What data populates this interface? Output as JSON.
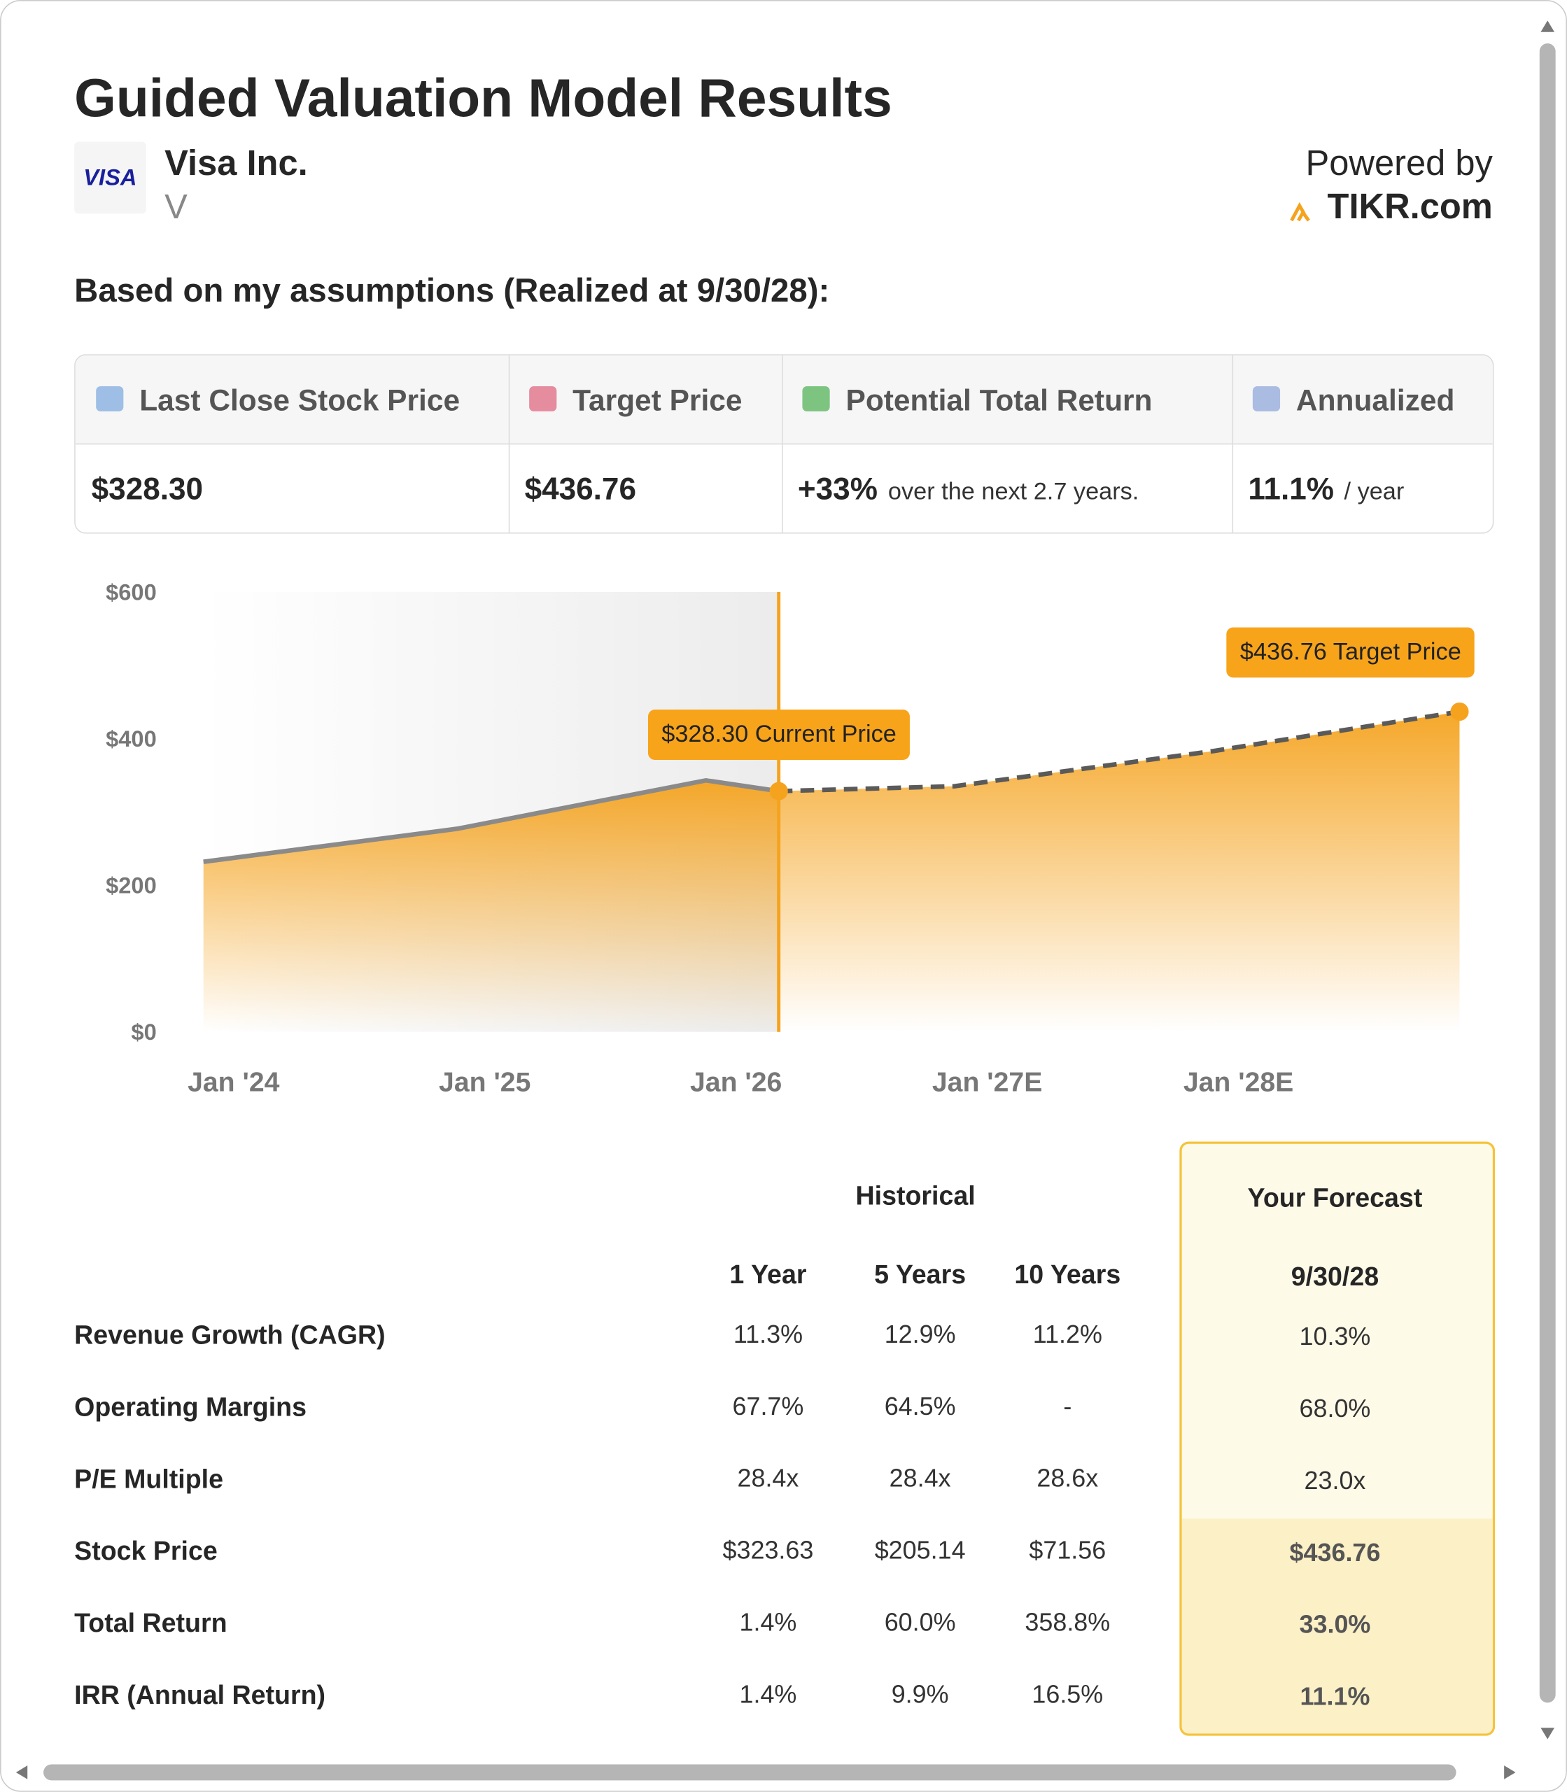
{
  "header": {
    "title": "Guided Valuation Model Results",
    "logo": "VISA",
    "company": "Visa Inc.",
    "ticker": "V",
    "powered": "Powered by",
    "brand": "TIKR.com"
  },
  "subtitle": "Based on my assumptions (Realized at 9/30/28):",
  "summary": {
    "headers": [
      "Last Close Stock Price",
      "Target Price",
      "Potential Total Return",
      "Annualized"
    ],
    "values": [
      "$328.30",
      "$436.76",
      "+33%",
      "11.1%"
    ],
    "notes": [
      null,
      null,
      "over the next 2.7 years.",
      "/ year"
    ]
  },
  "chart_data": {
    "type": "area",
    "series": [
      {
        "color": "#8a8a8a",
        "dash": false,
        "x": [
          2023.88,
          2024.89,
          2025.88,
          2026.17
        ],
        "values": [
          232,
          277,
          343,
          328.3
        ]
      },
      {
        "color": "#5a5a5a",
        "dash": true,
        "x": [
          2026.17,
          2026.87,
          2027.9,
          2028.88
        ],
        "values": [
          328.3,
          335,
          383,
          436.76
        ]
      }
    ],
    "fill_color": "#f5a31f",
    "xlim": [
      2023.88,
      2028.88
    ],
    "xticks": [
      {
        "value": 2024,
        "label": "Jan '24"
      },
      {
        "value": 2025,
        "label": "Jan '25"
      },
      {
        "value": 2026,
        "label": "Jan '26"
      },
      {
        "value": 2027,
        "label": "Jan '27E"
      },
      {
        "value": 2028,
        "label": "Jan '28E"
      }
    ],
    "ylim": [
      0,
      600
    ],
    "yticks": [
      {
        "value": 0,
        "label": "$0"
      },
      {
        "value": 200,
        "label": "$200"
      },
      {
        "value": 400,
        "label": "$400"
      },
      {
        "value": 600,
        "label": "$600"
      }
    ],
    "annotations": [
      "$328.30 Current Price",
      "$436.76 Target Price"
    ]
  },
  "table": {
    "group_historical": "Historical",
    "group_forecast": "Your Forecast",
    "columns": [
      "1 Year",
      "5 Years",
      "10 Years",
      "9/30/28"
    ],
    "rows": [
      [
        "Revenue Growth (CAGR)",
        "11.3%",
        "12.9%",
        "11.2%",
        "10.3%"
      ],
      [
        "Operating Margins",
        "67.7%",
        "64.5%",
        "-",
        "68.0%"
      ],
      [
        "P/E Multiple",
        "28.4x",
        "28.4x",
        "28.6x",
        "23.0x"
      ],
      [
        "Stock Price",
        "$323.63",
        "$205.14",
        "$71.56",
        "$436.76"
      ],
      [
        "Total Return",
        "1.4%",
        "60.0%",
        "358.8%",
        "33.0%"
      ],
      [
        "IRR (Annual Return)",
        "1.4%",
        "9.9%",
        "16.5%",
        "11.1%"
      ]
    ]
  }
}
